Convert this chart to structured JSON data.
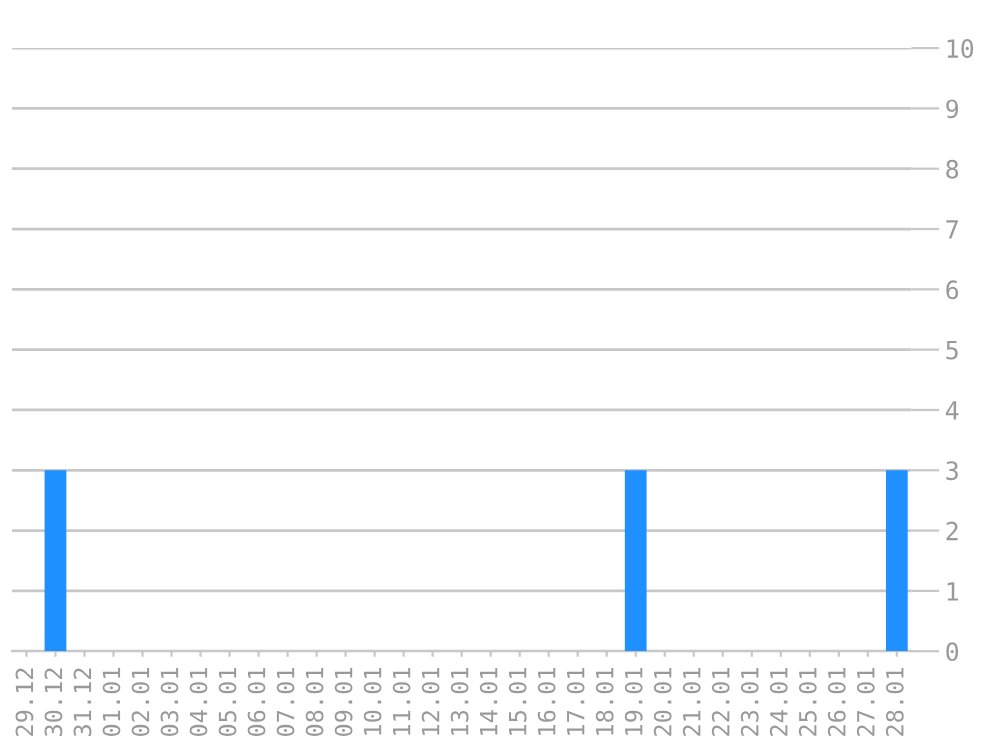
{
  "chart_data": {
    "type": "bar",
    "categories": [
      "29.12",
      "30.12",
      "31.12",
      "01.01",
      "02.01",
      "03.01",
      "04.01",
      "05.01",
      "06.01",
      "07.01",
      "08.01",
      "09.01",
      "10.01",
      "11.01",
      "12.01",
      "13.01",
      "14.01",
      "15.01",
      "16.01",
      "17.01",
      "18.01",
      "19.01",
      "20.01",
      "21.01",
      "22.01",
      "23.01",
      "24.01",
      "25.01",
      "26.01",
      "27.01",
      "28.01"
    ],
    "values": [
      0,
      3,
      0,
      0,
      0,
      0,
      0,
      0,
      0,
      0,
      0,
      0,
      0,
      0,
      0,
      0,
      0,
      0,
      0,
      0,
      0,
      3,
      0,
      0,
      0,
      0,
      0,
      0,
      0,
      0,
      3
    ],
    "color": "#1e90ff",
    "ylim": [
      0,
      10
    ],
    "yticks": [
      0,
      1,
      2,
      3,
      4,
      5,
      6,
      7,
      8,
      9,
      10
    ],
    "grid": "y"
  }
}
